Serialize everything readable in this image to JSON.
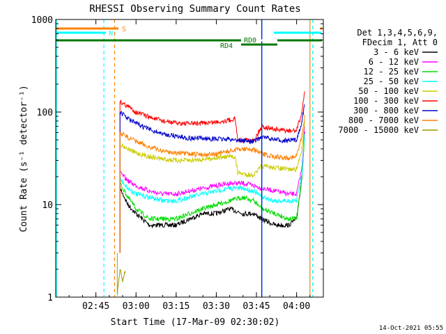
{
  "chart_data": {
    "type": "line",
    "title": "RHESSI Observing Summary Count Rates",
    "xlabel": "Start Time (17-Mar-09 02:30:02)",
    "ylabel": "Count Rate (s⁻¹ detector⁻¹)",
    "y_scale": "log",
    "ylim": [
      1,
      1000
    ],
    "xlim": [
      "02:30",
      "04:10"
    ],
    "x_ticks": [
      "02:45",
      "03:00",
      "03:15",
      "03:30",
      "03:45",
      "04:00"
    ],
    "y_ticks": [
      {
        "value": 1,
        "label": "1"
      },
      {
        "value": 10,
        "label": "10"
      },
      {
        "value": 100,
        "label": "100"
      },
      {
        "value": 1000,
        "label": "1000"
      }
    ],
    "legend": {
      "header": [
        "Det 1,3,4,5,6,9,",
        "FDecim 1, Att 0"
      ],
      "placement": "right"
    },
    "timestamp": "14-Oct-2021 05:55",
    "series": [
      {
        "name": "3 - 6 keV",
        "color": "#000000",
        "points": [
          [
            "02:54",
            15
          ],
          [
            "02:57",
            10
          ],
          [
            "03:00",
            8
          ],
          [
            "03:05",
            6
          ],
          [
            "03:10",
            6
          ],
          [
            "03:15",
            6
          ],
          [
            "03:20",
            7
          ],
          [
            "03:25",
            8
          ],
          [
            "03:30",
            8
          ],
          [
            "03:35",
            9
          ],
          [
            "03:40",
            8
          ],
          [
            "03:44",
            8
          ],
          [
            "03:47",
            7
          ],
          [
            "03:52",
            6
          ],
          [
            "03:57",
            6
          ],
          [
            "04:00",
            7
          ],
          [
            "04:02",
            20
          ],
          [
            "04:03",
            60
          ]
        ]
      },
      {
        "name": "6 - 12 keV",
        "color": "#ff00ff",
        "points": [
          [
            "02:54",
            22
          ],
          [
            "02:57",
            18
          ],
          [
            "03:00",
            16
          ],
          [
            "03:05",
            14
          ],
          [
            "03:10",
            13
          ],
          [
            "03:15",
            13
          ],
          [
            "03:20",
            14
          ],
          [
            "03:25",
            15
          ],
          [
            "03:30",
            16
          ],
          [
            "03:35",
            17
          ],
          [
            "03:40",
            17
          ],
          [
            "03:44",
            16
          ],
          [
            "03:47",
            15
          ],
          [
            "03:52",
            14
          ],
          [
            "03:57",
            13
          ],
          [
            "04:00",
            13
          ],
          [
            "04:02",
            25
          ],
          [
            "04:03",
            70
          ]
        ]
      },
      {
        "name": "12 - 25 keV",
        "color": "#00dd00",
        "points": [
          [
            "02:54",
            17
          ],
          [
            "02:57",
            12
          ],
          [
            "03:00",
            9
          ],
          [
            "03:05",
            7
          ],
          [
            "03:10",
            7
          ],
          [
            "03:15",
            7
          ],
          [
            "03:20",
            8
          ],
          [
            "03:25",
            9
          ],
          [
            "03:30",
            10
          ],
          [
            "03:35",
            11
          ],
          [
            "03:40",
            12
          ],
          [
            "03:44",
            11
          ],
          [
            "03:47",
            9
          ],
          [
            "03:52",
            8
          ],
          [
            "03:57",
            7
          ],
          [
            "04:00",
            7
          ],
          [
            "04:02",
            20
          ],
          [
            "04:03",
            55
          ]
        ]
      },
      {
        "name": "25 - 50 keV",
        "color": "#00ffff",
        "points": [
          [
            "02:54",
            19
          ],
          [
            "02:57",
            15
          ],
          [
            "03:00",
            13
          ],
          [
            "03:05",
            12
          ],
          [
            "03:10",
            11
          ],
          [
            "03:15",
            11
          ],
          [
            "03:20",
            12
          ],
          [
            "03:25",
            13
          ],
          [
            "03:30",
            14
          ],
          [
            "03:35",
            15
          ],
          [
            "03:40",
            15
          ],
          [
            "03:44",
            14
          ],
          [
            "03:47",
            12
          ],
          [
            "03:52",
            11
          ],
          [
            "03:57",
            11
          ],
          [
            "04:00",
            11
          ],
          [
            "04:02",
            22
          ],
          [
            "04:03",
            60
          ]
        ]
      },
      {
        "name": "50 - 100 keV",
        "color": "#cccc00",
        "points": [
          [
            "02:54",
            45
          ],
          [
            "02:57",
            40
          ],
          [
            "03:00",
            36
          ],
          [
            "03:05",
            33
          ],
          [
            "03:10",
            31
          ],
          [
            "03:15",
            30
          ],
          [
            "03:20",
            30
          ],
          [
            "03:25",
            31
          ],
          [
            "03:30",
            32
          ],
          [
            "03:35",
            33
          ],
          [
            "03:37",
            33
          ],
          [
            "03:38",
            22
          ],
          [
            "03:42",
            21
          ],
          [
            "03:44",
            21
          ],
          [
            "03:47",
            26
          ],
          [
            "03:52",
            25
          ],
          [
            "03:57",
            24
          ],
          [
            "04:00",
            24
          ],
          [
            "04:02",
            40
          ],
          [
            "04:03",
            80
          ]
        ]
      },
      {
        "name": "100 - 300 keV",
        "color": "#ff0000",
        "points": [
          [
            "02:54",
            130
          ],
          [
            "02:57",
            115
          ],
          [
            "03:00",
            100
          ],
          [
            "03:05",
            88
          ],
          [
            "03:10",
            80
          ],
          [
            "03:15",
            76
          ],
          [
            "03:20",
            75
          ],
          [
            "03:25",
            76
          ],
          [
            "03:30",
            78
          ],
          [
            "03:35",
            82
          ],
          [
            "03:37",
            85
          ],
          [
            "03:38",
            50
          ],
          [
            "03:42",
            50
          ],
          [
            "03:44",
            49
          ],
          [
            "03:47",
            70
          ],
          [
            "03:52",
            65
          ],
          [
            "03:57",
            62
          ],
          [
            "04:00",
            63
          ],
          [
            "04:02",
            100
          ],
          [
            "04:03",
            170
          ]
        ]
      },
      {
        "name": "300 - 800 keV",
        "color": "#0000cc",
        "points": [
          [
            "02:54",
            100
          ],
          [
            "02:57",
            85
          ],
          [
            "03:00",
            75
          ],
          [
            "03:05",
            65
          ],
          [
            "03:10",
            58
          ],
          [
            "03:15",
            55
          ],
          [
            "03:20",
            52
          ],
          [
            "03:25",
            52
          ],
          [
            "03:30",
            51
          ],
          [
            "03:35",
            51
          ],
          [
            "03:40",
            49
          ],
          [
            "03:44",
            48
          ],
          [
            "03:47",
            54
          ],
          [
            "03:52",
            50
          ],
          [
            "03:57",
            49
          ],
          [
            "04:00",
            50
          ],
          [
            "04:02",
            80
          ],
          [
            "04:03",
            120
          ]
        ]
      },
      {
        "name": "800 - 7000 keV",
        "color": "#ff8000",
        "points": [
          [
            "02:54",
            60
          ],
          [
            "02:57",
            53
          ],
          [
            "03:00",
            48
          ],
          [
            "03:05",
            42
          ],
          [
            "03:10",
            38
          ],
          [
            "03:15",
            36
          ],
          [
            "03:20",
            35
          ],
          [
            "03:25",
            35
          ],
          [
            "03:30",
            35
          ],
          [
            "03:35",
            38
          ],
          [
            "03:40",
            40
          ],
          [
            "03:44",
            39
          ],
          [
            "03:47",
            35
          ],
          [
            "03:52",
            33
          ],
          [
            "03:57",
            32
          ],
          [
            "04:00",
            33
          ],
          [
            "04:02",
            55
          ],
          [
            "04:03",
            90
          ]
        ]
      },
      {
        "name": "7000 - 15000 keV",
        "color": "#999900",
        "points": [
          [
            "02:53",
            1.1
          ],
          [
            "02:54",
            2
          ],
          [
            "02:55",
            1.5
          ],
          [
            "02:56",
            2
          ]
        ]
      }
    ],
    "annotations": [
      {
        "label": "S",
        "color": "#ff8000"
      },
      {
        "label": "N",
        "color": "#00ffff"
      },
      {
        "label": "RD0",
        "color": "#007700"
      },
      {
        "label": "RD4",
        "color": "#007700"
      }
    ]
  }
}
